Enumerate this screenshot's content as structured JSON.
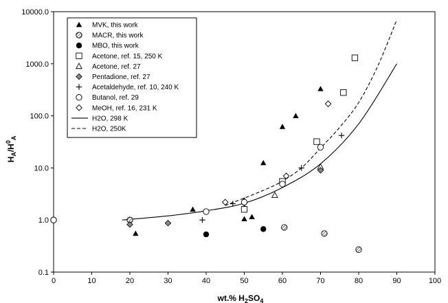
{
  "chart_data": {
    "type": "scatter",
    "title": "",
    "x_axis": {
      "label_main": "wt.% H",
      "label_sub": "2",
      "label_main2": "SO",
      "label_sub2": "4",
      "range": [
        0,
        100
      ],
      "ticks": [
        0,
        10,
        20,
        30,
        40,
        50,
        60,
        70,
        80,
        90,
        100
      ]
    },
    "y_axis": {
      "label_main": "H",
      "label_sub": "A",
      "label_main2": "/H",
      "label_sup": "0",
      "label_sub2": "A",
      "scale": "log",
      "range": [
        0.1,
        10000
      ],
      "ticks": [
        0.1,
        1,
        10,
        100,
        1000,
        10000
      ],
      "tick_labels": [
        "0.1",
        "1.0",
        "10.0",
        "100.0",
        "1000.0",
        "10000.0"
      ]
    },
    "grid": false,
    "legend_position": "top-left",
    "series": [
      {
        "name": "MVK, this work",
        "marker": "filled-triangle",
        "points": [
          [
            21.5,
            0.55
          ],
          [
            36.5,
            1.6
          ],
          [
            50,
            1.05
          ],
          [
            50,
            2.4
          ],
          [
            52,
            1.15
          ],
          [
            55,
            12.5
          ],
          [
            60,
            62
          ],
          [
            63.5,
            100
          ],
          [
            70,
            330
          ]
        ]
      },
      {
        "name": "MACR, this work",
        "marker": "hatched-circle",
        "points": [
          [
            0,
            1.0
          ],
          [
            20,
            1.0
          ],
          [
            60.5,
            0.72
          ],
          [
            71,
            0.55
          ],
          [
            80,
            0.27
          ]
        ]
      },
      {
        "name": "MBO, this work",
        "marker": "filled-circle",
        "points": [
          [
            40,
            0.53
          ],
          [
            55,
            0.67
          ]
        ]
      },
      {
        "name": "Acetone, ref. 15, 250 K",
        "marker": "open-square",
        "points": [
          [
            50,
            1.6
          ],
          [
            60,
            5.5
          ],
          [
            69,
            32
          ],
          [
            76,
            280
          ],
          [
            79,
            1300
          ]
        ]
      },
      {
        "name": "Acetone, ref. 27",
        "marker": "open-triangle",
        "points": [
          [
            58,
            3.0
          ],
          [
            70,
            10.5
          ]
        ]
      },
      {
        "name": "Pentadione, ref. 27",
        "marker": "filled-diamond",
        "points": [
          [
            20,
            0.82
          ],
          [
            30,
            0.87
          ],
          [
            50,
            2.1
          ],
          [
            70,
            9.0
          ]
        ]
      },
      {
        "name": "Acetaldehyde, ref. 10, 240 K",
        "marker": "plus",
        "points": [
          [
            39,
            1.0
          ],
          [
            47,
            2.05
          ],
          [
            65,
            10
          ],
          [
            75.5,
            42
          ]
        ]
      },
      {
        "name": "Butanol, ref. 29",
        "marker": "open-circle",
        "points": [
          [
            0,
            1.0
          ],
          [
            40,
            1.45
          ],
          [
            50,
            2.2
          ],
          [
            60,
            4.9
          ],
          [
            70,
            25
          ]
        ]
      },
      {
        "name": "MeOH, ref. 16, 231 K",
        "marker": "open-diamond",
        "points": [
          [
            45,
            2.2
          ],
          [
            61,
            7.0
          ],
          [
            72,
            170
          ]
        ]
      },
      {
        "name": "H2O, 298 K",
        "marker": "solid-line",
        "points": [
          [
            18,
            1.0
          ],
          [
            30,
            1.2
          ],
          [
            40,
            1.5
          ],
          [
            50,
            2.1
          ],
          [
            60,
            4.2
          ],
          [
            70,
            12
          ],
          [
            80,
            70
          ],
          [
            90,
            1000
          ]
        ]
      },
      {
        "name": "H2O, 250K",
        "marker": "dashed-line",
        "points": [
          [
            45,
            1.9
          ],
          [
            55,
            3.7
          ],
          [
            60,
            5.6
          ],
          [
            65,
            10
          ],
          [
            70,
            24
          ],
          [
            75,
            60
          ],
          [
            80,
            180
          ],
          [
            85,
            900
          ],
          [
            90,
            7000
          ]
        ]
      }
    ]
  }
}
